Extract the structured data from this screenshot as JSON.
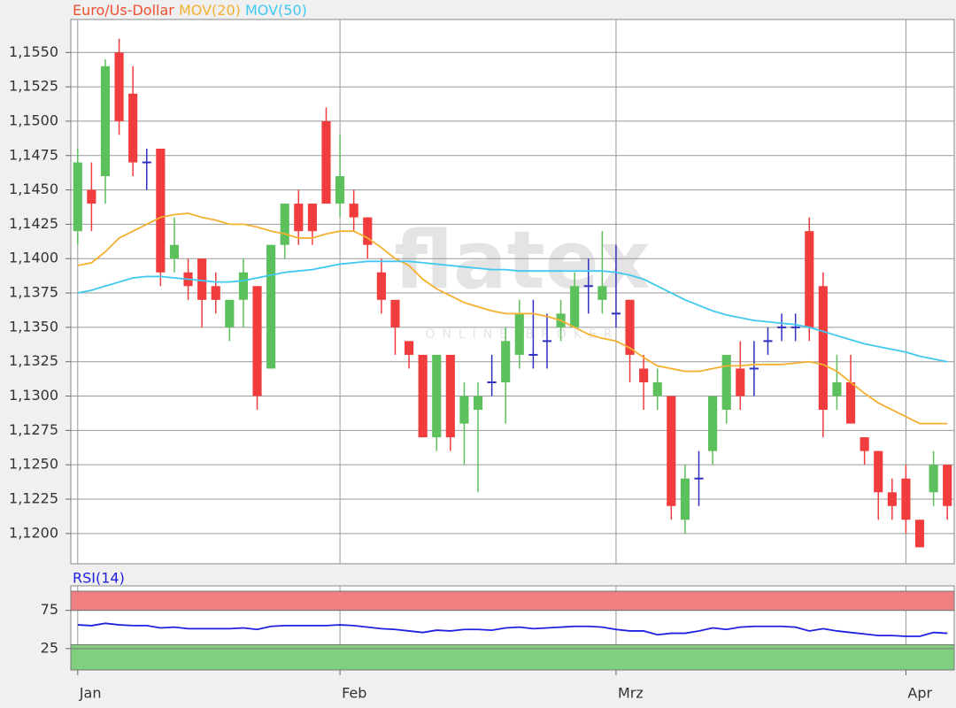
{
  "chart_data": [
    {
      "type": "candlestick",
      "x": [
        0,
        1,
        2,
        3,
        4,
        5,
        6,
        7,
        8,
        9,
        10,
        11,
        12,
        13,
        14,
        15,
        16,
        17,
        18,
        19,
        20,
        21,
        22,
        23,
        24,
        25,
        26,
        27,
        28,
        29,
        30,
        31,
        32,
        33,
        34,
        35,
        36,
        37,
        38,
        39,
        40,
        41,
        42,
        43,
        44,
        45,
        46,
        47,
        48,
        49,
        50,
        51,
        52,
        53,
        54,
        55,
        56,
        57,
        58,
        59,
        60,
        61,
        62,
        63
      ],
      "xlim": [
        -0.5,
        63.5
      ],
      "xticks": [
        {
          "value": 0,
          "label": "Jan"
        },
        {
          "value": 19,
          "label": "Feb"
        },
        {
          "value": 39,
          "label": "Mrz"
        },
        {
          "value": 60,
          "label": "Apr"
        }
      ],
      "ylim": [
        1.1178,
        1.1574
      ],
      "yticks": [
        {
          "value": 1.12,
          "label": "1,1200"
        },
        {
          "value": 1.1225,
          "label": "1,1225"
        },
        {
          "value": 1.125,
          "label": "1,1250"
        },
        {
          "value": 1.1275,
          "label": "1,1275"
        },
        {
          "value": 1.13,
          "label": "1,1300"
        },
        {
          "value": 1.1325,
          "label": "1,1325"
        },
        {
          "value": 1.135,
          "label": "1,1350"
        },
        {
          "value": 1.1375,
          "label": "1,1375"
        },
        {
          "value": 1.14,
          "label": "1,1400"
        },
        {
          "value": 1.1425,
          "label": "1,1425"
        },
        {
          "value": 1.145,
          "label": "1,1450"
        },
        {
          "value": 1.1475,
          "label": "1,1475"
        },
        {
          "value": 1.15,
          "label": "1,1500"
        },
        {
          "value": 1.1525,
          "label": "1,1525"
        },
        {
          "value": 1.155,
          "label": "1,1550"
        }
      ],
      "grid": true,
      "candles": {
        "name": "Euro/Us-Dollar",
        "color": "#f05030",
        "up_color": "#5cc05c",
        "down_color": "#f03c3c",
        "doji_color": "#3030c0",
        "open": [
          1.142,
          1.145,
          1.146,
          1.155,
          1.152,
          1.147,
          1.148,
          1.14,
          1.139,
          1.14,
          1.138,
          1.135,
          1.137,
          1.138,
          1.132,
          1.141,
          1.144,
          1.144,
          1.15,
          1.144,
          1.144,
          1.143,
          1.139,
          1.137,
          1.134,
          1.133,
          1.127,
          1.133,
          1.128,
          1.129,
          1.131,
          1.131,
          1.133,
          1.133,
          1.134,
          1.135,
          1.135,
          1.138,
          1.137,
          1.136,
          1.137,
          1.132,
          1.13,
          1.13,
          1.121,
          1.124,
          1.126,
          1.129,
          1.132,
          1.132,
          1.134,
          1.135,
          1.135,
          1.142,
          1.138,
          1.13,
          1.131,
          1.127,
          1.126,
          1.123,
          1.124,
          1.121,
          1.123,
          1.125
        ],
        "high": [
          1.148,
          1.147,
          1.1545,
          1.156,
          1.154,
          1.148,
          1.148,
          1.143,
          1.14,
          1.14,
          1.139,
          1.137,
          1.14,
          1.138,
          1.141,
          1.144,
          1.145,
          1.144,
          1.151,
          1.149,
          1.145,
          1.143,
          1.14,
          1.137,
          1.134,
          1.133,
          1.133,
          1.133,
          1.131,
          1.131,
          1.133,
          1.135,
          1.137,
          1.137,
          1.136,
          1.137,
          1.139,
          1.14,
          1.142,
          1.141,
          1.137,
          1.133,
          1.132,
          1.13,
          1.125,
          1.126,
          1.13,
          1.133,
          1.134,
          1.134,
          1.135,
          1.136,
          1.136,
          1.143,
          1.139,
          1.133,
          1.133,
          1.127,
          1.126,
          1.124,
          1.125,
          1.121,
          1.126,
          1.125
        ],
        "low": [
          1.141,
          1.142,
          1.144,
          1.149,
          1.146,
          1.145,
          1.138,
          1.139,
          1.137,
          1.135,
          1.136,
          1.134,
          1.135,
          1.129,
          1.132,
          1.14,
          1.141,
          1.141,
          1.144,
          1.143,
          1.142,
          1.14,
          1.136,
          1.133,
          1.132,
          1.127,
          1.126,
          1.126,
          1.125,
          1.123,
          1.13,
          1.128,
          1.132,
          1.132,
          1.132,
          1.134,
          1.135,
          1.136,
          1.136,
          1.135,
          1.131,
          1.129,
          1.129,
          1.121,
          1.12,
          1.122,
          1.125,
          1.128,
          1.129,
          1.13,
          1.133,
          1.134,
          1.134,
          1.134,
          1.127,
          1.129,
          1.128,
          1.125,
          1.121,
          1.121,
          1.12,
          1.119,
          1.122,
          1.121
        ],
        "close": [
          1.147,
          1.144,
          1.154,
          1.15,
          1.147,
          1.147,
          1.139,
          1.141,
          1.138,
          1.137,
          1.137,
          1.137,
          1.139,
          1.13,
          1.141,
          1.144,
          1.142,
          1.142,
          1.144,
          1.146,
          1.143,
          1.141,
          1.137,
          1.135,
          1.133,
          1.127,
          1.133,
          1.127,
          1.13,
          1.13,
          1.131,
          1.134,
          1.136,
          1.133,
          1.134,
          1.136,
          1.138,
          1.138,
          1.138,
          1.136,
          1.133,
          1.131,
          1.131,
          1.122,
          1.124,
          1.124,
          1.13,
          1.133,
          1.13,
          1.132,
          1.134,
          1.135,
          1.135,
          1.135,
          1.129,
          1.131,
          1.128,
          1.126,
          1.123,
          1.122,
          1.121,
          1.119,
          1.125,
          1.122
        ]
      },
      "series": [
        {
          "name": "MOV(20)",
          "color": "#f5b030",
          "values": [
            1.1395,
            1.1397,
            1.1405,
            1.1415,
            1.142,
            1.1425,
            1.143,
            1.1432,
            1.1433,
            1.143,
            1.1428,
            1.1425,
            1.1425,
            1.1423,
            1.142,
            1.1418,
            1.1415,
            1.1415,
            1.1418,
            1.142,
            1.142,
            1.1415,
            1.1408,
            1.14,
            1.1395,
            1.1385,
            1.1378,
            1.1373,
            1.1368,
            1.1365,
            1.1362,
            1.136,
            1.136,
            1.136,
            1.1358,
            1.1355,
            1.135,
            1.1345,
            1.1342,
            1.134,
            1.1335,
            1.1328,
            1.1322,
            1.132,
            1.1318,
            1.1318,
            1.132,
            1.1322,
            1.1322,
            1.1323,
            1.1323,
            1.1323,
            1.1324,
            1.1325,
            1.1323,
            1.1318,
            1.131,
            1.1302,
            1.1295,
            1.129,
            1.1285,
            1.128,
            1.128,
            1.128
          ]
        },
        {
          "name": "MOV(50)",
          "color": "#40c8f0",
          "values": [
            1.1375,
            1.1377,
            1.138,
            1.1383,
            1.1386,
            1.1387,
            1.1387,
            1.1386,
            1.1385,
            1.1384,
            1.1383,
            1.1383,
            1.1384,
            1.1386,
            1.1388,
            1.139,
            1.1391,
            1.1392,
            1.1394,
            1.1396,
            1.1397,
            1.1398,
            1.1398,
            1.1398,
            1.1398,
            1.1397,
            1.1396,
            1.1395,
            1.1394,
            1.1393,
            1.1392,
            1.1392,
            1.1391,
            1.1391,
            1.1391,
            1.1391,
            1.1391,
            1.1391,
            1.1391,
            1.139,
            1.1388,
            1.1385,
            1.138,
            1.1375,
            1.137,
            1.1366,
            1.1362,
            1.1359,
            1.1357,
            1.1355,
            1.1354,
            1.1353,
            1.1352,
            1.135,
            1.1347,
            1.1344,
            1.1341,
            1.1338,
            1.1336,
            1.1334,
            1.1332,
            1.1329,
            1.1327,
            1.1325
          ]
        }
      ],
      "watermark": {
        "brand": "flatex",
        "tagline": "ONLINE BROKER"
      }
    },
    {
      "type": "line",
      "series": [
        {
          "name": "RSI(14)",
          "color": "#2020e0",
          "values": [
            56,
            55,
            58,
            56,
            55,
            55,
            52,
            53,
            51,
            51,
            51,
            51,
            52,
            50,
            54,
            55,
            55,
            55,
            55,
            56,
            55,
            53,
            51,
            50,
            48,
            46,
            49,
            48,
            50,
            50,
            49,
            52,
            53,
            51,
            52,
            53,
            54,
            54,
            53,
            50,
            48,
            48,
            43,
            45,
            45,
            48,
            52,
            50,
            53,
            54,
            54,
            54,
            53,
            48,
            51,
            48,
            46,
            44,
            42,
            42,
            41,
            41,
            46,
            45
          ]
        }
      ],
      "ylim": [
        -3,
        107
      ],
      "yticks": [
        25,
        75
      ],
      "bands": [
        {
          "range": [
            75,
            100
          ],
          "color": "#f08080"
        },
        {
          "range": [
            -3,
            30
          ],
          "color": "#80d080"
        }
      ]
    }
  ]
}
